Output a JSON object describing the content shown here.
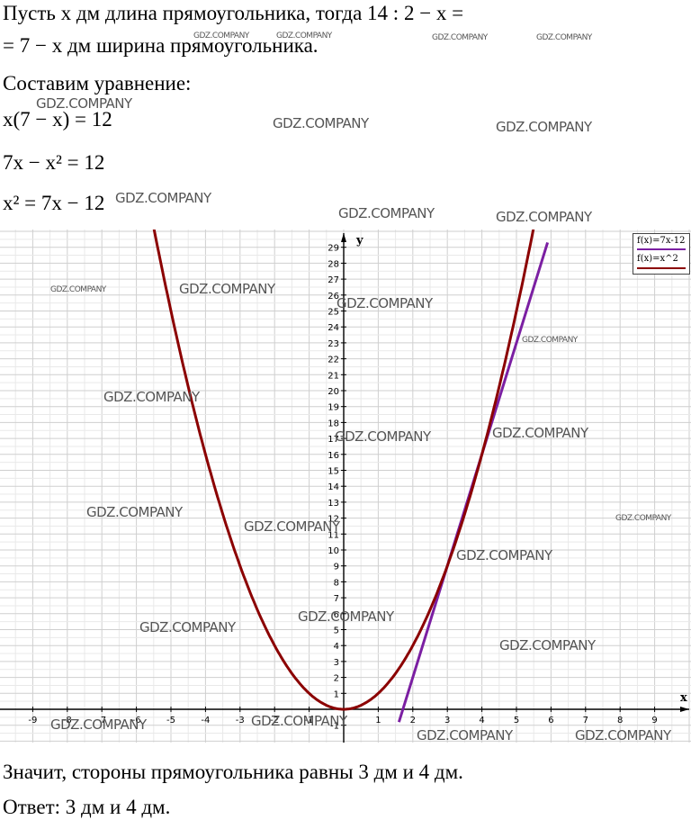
{
  "text": {
    "l1": "Пусть x дм длина прямоугольника, тогда 14 : 2 − x =",
    "l2": "= 7 − x дм ширина прямоугольника.",
    "l3": "Составим уравнение:",
    "l4": "x(7 − x) = 12",
    "l5": "7x − x² = 12",
    "l6": "x² = 7x − 12",
    "l7": "Значит, стороны прямоугольника равны 3 дм и 4 дм.",
    "l8": "Ответ: 3 дм и 4 дм."
  },
  "watermark": "GDZ.COMPANY",
  "chart_data": {
    "type": "line",
    "xlabel": "x",
    "ylabel": "y",
    "xlim": [
      -10,
      10
    ],
    "ylim": [
      -1,
      29
    ],
    "x_ticks": [
      -9,
      -8,
      -7,
      -6,
      -5,
      -4,
      -3,
      -2,
      -1,
      1,
      2,
      3,
      4,
      5,
      6,
      7,
      8,
      9
    ],
    "y_ticks": [
      -1,
      1,
      2,
      3,
      4,
      5,
      6,
      7,
      8,
      9,
      10,
      11,
      12,
      13,
      14,
      15,
      16,
      17,
      18,
      19,
      20,
      21,
      22,
      23,
      24,
      25,
      26,
      27,
      28,
      29
    ],
    "grid": true,
    "legend_position": "top-right",
    "series": [
      {
        "name": "f(x)=7x-12",
        "formula": "7x-12",
        "color": "#7b1fa2",
        "x": [
          1.6,
          2,
          3,
          4,
          5,
          5.9
        ],
        "y": [
          -0.8,
          2,
          9,
          16,
          23,
          29.3
        ]
      },
      {
        "name": "f(x)=x^2",
        "formula": "x^2",
        "color": "#8b0000",
        "x": [
          -5.5,
          -5,
          -4,
          -3,
          -2,
          -1,
          0,
          1,
          2,
          3,
          4,
          5,
          5.5
        ],
        "y": [
          30.25,
          25,
          16,
          9,
          4,
          1,
          0,
          1,
          4,
          9,
          16,
          25,
          30.25
        ]
      }
    ]
  }
}
